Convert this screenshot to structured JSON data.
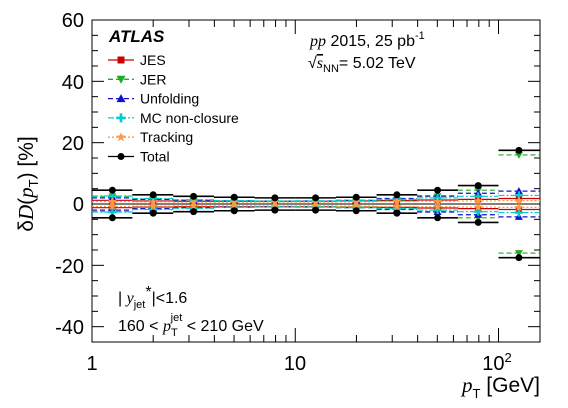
{
  "chart_data": {
    "type": "scatter",
    "xscale": "log",
    "xlim": [
      1,
      160
    ],
    "ylim": [
      -45,
      60
    ],
    "grid": false,
    "legend_position": "top-left",
    "ylabel": "δD(p_T) [%]",
    "xlabel": "p_T [GeV]",
    "yticks": [
      "60",
      "40",
      "20",
      "0",
      "-20",
      "-40"
    ],
    "xticks": [
      "1",
      "10",
      "10^2"
    ],
    "annotations": {
      "atlas": "ATLAS",
      "dataset_label": "pp 2015, 25 pb",
      "dataset_sup": "-1",
      "energy": "√s_NN = 5.02 TeV",
      "rapidity_cut": "|y_jet*|<1.6",
      "pt_cut": "160 < p_T^jet < 210 GeV"
    },
    "bin_edges": [
      1,
      1.58,
      2.51,
      3.98,
      6.31,
      10,
      15.85,
      25.12,
      39.81,
      63.1,
      100,
      160
    ],
    "x": [
      1.26,
      2.0,
      3.16,
      5.01,
      7.94,
      12.59,
      19.95,
      31.62,
      50.12,
      79.43,
      126.0
    ],
    "series": [
      {
        "name": "JES",
        "color": "#cc0000",
        "marker": "square",
        "line": "solid",
        "values": [
          1.2,
          1.0,
          0.9,
          0.9,
          0.9,
          0.9,
          1.0,
          1.1,
          1.3,
          1.5,
          1.8
        ]
      },
      {
        "name": "JER",
        "color": "#22aa22",
        "marker": "triangle-down",
        "line": "dash",
        "values": [
          2.5,
          1.5,
          1.2,
          1.0,
          0.9,
          0.9,
          1.0,
          1.3,
          2.5,
          4.5,
          16.0
        ]
      },
      {
        "name": "Unfolding",
        "color": "#1111cc",
        "marker": "triangle-up",
        "line": "dash",
        "values": [
          2.0,
          1.5,
          1.2,
          1.0,
          0.9,
          1.0,
          1.2,
          1.8,
          2.6,
          3.5,
          4.2
        ]
      },
      {
        "name": "MC non-closure",
        "color": "#00cccc",
        "marker": "cross",
        "line": "dashdot",
        "values": [
          2.6,
          1.8,
          1.4,
          1.1,
          1.0,
          1.0,
          1.2,
          1.5,
          2.0,
          2.5,
          2.8
        ]
      },
      {
        "name": "Tracking",
        "color": "#ff9944",
        "marker": "star",
        "line": "dot",
        "values": [
          0.8,
          0.7,
          0.6,
          0.6,
          0.6,
          0.6,
          0.7,
          0.8,
          0.9,
          1.0,
          1.1
        ]
      },
      {
        "name": "Total",
        "color": "#000000",
        "marker": "circle",
        "line": "solid",
        "values": [
          4.5,
          3.0,
          2.5,
          2.2,
          2.0,
          2.0,
          2.2,
          3.0,
          4.5,
          6.0,
          17.5
        ]
      }
    ]
  }
}
